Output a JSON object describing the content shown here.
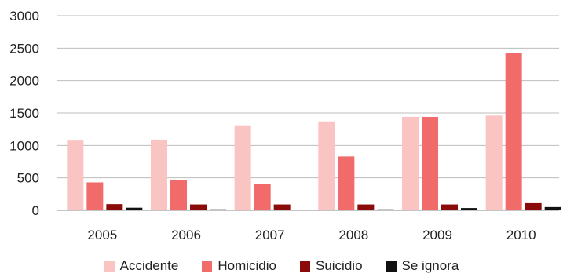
{
  "chart_data": {
    "type": "bar",
    "title": "",
    "xlabel": "",
    "ylabel": "",
    "ylim": [
      0,
      3000
    ],
    "yticks": [
      0,
      500,
      1000,
      1500,
      2000,
      2500,
      3000
    ],
    "grid": true,
    "legend_position": "bottom",
    "categories": [
      "2005",
      "2006",
      "2007",
      "2008",
      "2009",
      "2010"
    ],
    "series": [
      {
        "name": "Accidente",
        "color": "#f9c4c2",
        "values": [
          1075,
          1090,
          1310,
          1370,
          1440,
          1460
        ]
      },
      {
        "name": "Homicidio",
        "color": "#f26b6b",
        "values": [
          430,
          460,
          400,
          830,
          1440,
          2420
        ]
      },
      {
        "name": "Suicidio",
        "color": "#8b0a0a",
        "values": [
          95,
          90,
          90,
          90,
          90,
          110
        ]
      },
      {
        "name": "Se ignora",
        "color": "#111111",
        "values": [
          40,
          15,
          10,
          15,
          35,
          50
        ]
      }
    ]
  }
}
